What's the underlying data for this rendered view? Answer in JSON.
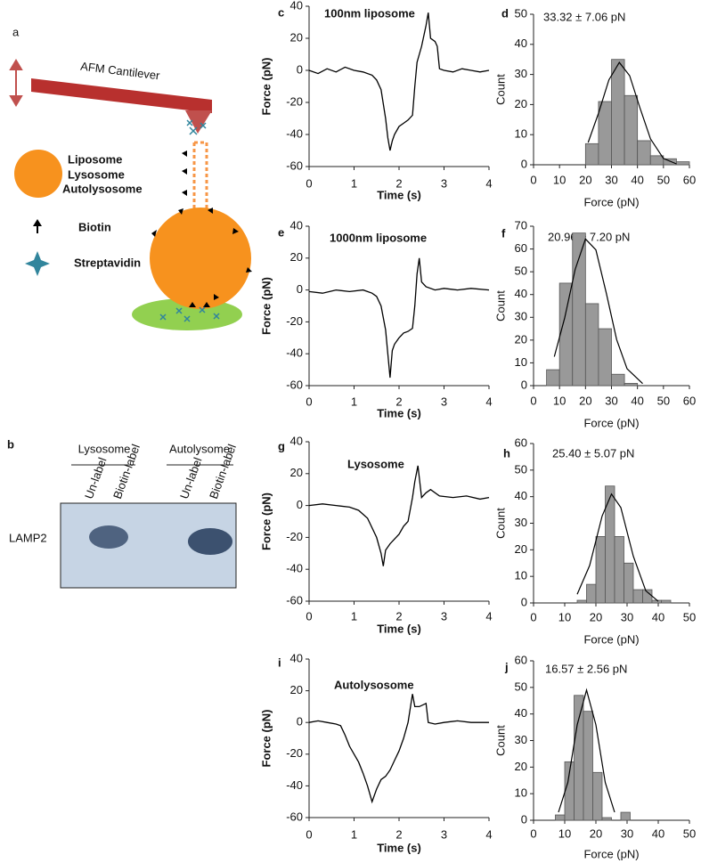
{
  "diagram": {
    "letter": "a",
    "cantilever": "AFM Cantilever",
    "legend": [
      "Liposome",
      "Lysosome",
      "Autolysosome"
    ],
    "biotin": "Biotin",
    "streptavidin": "Streptavidin"
  },
  "blot": {
    "letter": "b",
    "groups": [
      "Lysosome",
      "Autolysome"
    ],
    "lanes": [
      "Un-label",
      "Biotin-label",
      "Un-label",
      "Biotin-label"
    ],
    "row": "LAMP2"
  },
  "chart_data": [
    {
      "type": "line",
      "panel": "c",
      "title": "100nm liposome",
      "xlabel": "Time (s)",
      "ylabel": "Force (pN)",
      "color": "#000000",
      "xlim": [
        0,
        4
      ],
      "ylim": [
        -60,
        40
      ],
      "xticks": [
        0,
        1,
        2,
        3,
        4
      ],
      "yticks": [
        -60,
        -40,
        -20,
        0,
        20,
        40
      ],
      "x": [
        0,
        0.2,
        0.4,
        0.6,
        0.8,
        1.0,
        1.2,
        1.4,
        1.5,
        1.6,
        1.7,
        1.75,
        1.8,
        1.85,
        1.9,
        2.0,
        2.1,
        2.2,
        2.3,
        2.35,
        2.4,
        2.5,
        2.6,
        2.65,
        2.7,
        2.8,
        2.85,
        2.9,
        3.0,
        3.2,
        3.4,
        3.6,
        3.8,
        4.0
      ],
      "values": [
        0,
        -2,
        1,
        -1,
        2,
        0,
        -1,
        -3,
        -6,
        -12,
        -30,
        -42,
        -50,
        -44,
        -40,
        -35,
        -33,
        -31,
        -28,
        -10,
        5,
        15,
        28,
        36,
        20,
        18,
        15,
        1,
        0,
        -1,
        1,
        0,
        -1,
        0
      ]
    },
    {
      "type": "histogram",
      "panel": "d",
      "annotation": "33.32 ± 7.06 pN",
      "xlabel": "Force (pN)",
      "ylabel": "Count",
      "color": "#999999",
      "xlim": [
        0,
        60
      ],
      "ylim": [
        0,
        50
      ],
      "xticks": [
        0,
        10,
        20,
        30,
        40,
        50,
        60
      ],
      "yticks": [
        0,
        10,
        20,
        30,
        40,
        50
      ],
      "bins": [
        20,
        25,
        30,
        35,
        40,
        45,
        50,
        55,
        60
      ],
      "values": [
        7,
        21,
        35,
        23,
        8,
        3,
        2,
        1
      ],
      "fit": {
        "x": [
          21,
          25,
          29,
          33,
          37,
          41,
          45,
          50,
          55
        ],
        "values": [
          7.4,
          17.1,
          28.2,
          34,
          29.6,
          18.8,
          8.6,
          2.1,
          0.3
        ]
      }
    },
    {
      "type": "line",
      "panel": "e",
      "title": "1000nm liposome",
      "xlabel": "Time (s)",
      "ylabel": "Force (pN)",
      "color": "#000000",
      "xlim": [
        0,
        4
      ],
      "ylim": [
        -60,
        40
      ],
      "xticks": [
        0,
        1,
        2,
        3,
        4
      ],
      "yticks": [
        -60,
        -40,
        -20,
        0,
        20,
        40
      ],
      "x": [
        0,
        0.3,
        0.6,
        0.9,
        1.2,
        1.4,
        1.5,
        1.6,
        1.7,
        1.75,
        1.8,
        1.85,
        1.9,
        2.0,
        2.1,
        2.2,
        2.3,
        2.35,
        2.4,
        2.45,
        2.5,
        2.6,
        2.8,
        3.0,
        3.3,
        3.6,
        4.0
      ],
      "values": [
        -1,
        -2,
        0,
        -1,
        0,
        -2,
        -4,
        -10,
        -25,
        -40,
        -55,
        -38,
        -34,
        -30,
        -27,
        -26,
        -24,
        -10,
        10,
        20,
        5,
        2,
        0,
        1,
        0,
        1,
        0
      ]
    },
    {
      "type": "histogram",
      "panel": "f",
      "annotation": "20.96 ± 7.20 pN",
      "xlabel": "Force (pN)",
      "ylabel": "Count",
      "color": "#999999",
      "xlim": [
        0,
        60
      ],
      "ylim": [
        0,
        70
      ],
      "xticks": [
        0,
        10,
        20,
        30,
        40,
        50,
        60
      ],
      "yticks": [
        0,
        10,
        20,
        30,
        40,
        50,
        60,
        70
      ],
      "bins": [
        5,
        10,
        15,
        20,
        25,
        30,
        35,
        40
      ],
      "values": [
        7,
        45,
        67,
        36,
        25,
        5,
        1
      ],
      "fit": {
        "x": [
          8,
          12,
          16,
          20,
          24,
          28,
          32,
          36,
          42
        ],
        "values": [
          12.7,
          29.8,
          51,
          64.4,
          59.6,
          40.6,
          20.2,
          7.4,
          0.9
        ]
      }
    },
    {
      "type": "line",
      "panel": "g",
      "title": "Lysosome",
      "xlabel": "Time (s)",
      "ylabel": "Force (pN)",
      "color": "#000000",
      "xlim": [
        0,
        4
      ],
      "ylim": [
        -60,
        40
      ],
      "xticks": [
        0,
        1,
        2,
        3,
        4
      ],
      "yticks": [
        -60,
        -40,
        -20,
        0,
        20,
        40
      ],
      "x": [
        0,
        0.3,
        0.6,
        0.9,
        1.1,
        1.3,
        1.5,
        1.6,
        1.65,
        1.7,
        1.8,
        2.0,
        2.1,
        2.2,
        2.3,
        2.35,
        2.42,
        2.5,
        2.6,
        2.7,
        2.9,
        3.2,
        3.5,
        3.8,
        4.0
      ],
      "values": [
        0,
        1,
        0,
        -1,
        -3,
        -8,
        -20,
        -30,
        -38,
        -28,
        -24,
        -18,
        -13,
        -10,
        5,
        15,
        25,
        5,
        8,
        10,
        6,
        5,
        6,
        4,
        5
      ]
    },
    {
      "type": "histogram",
      "panel": "h",
      "annotation": "25.40 ± 5.07 pN",
      "xlabel": "Force (pN)",
      "ylabel": "Count",
      "color": "#999999",
      "xlim": [
        0,
        50
      ],
      "ylim": [
        0,
        60
      ],
      "xticks": [
        0,
        10,
        20,
        30,
        40,
        50
      ],
      "yticks": [
        0,
        10,
        20,
        30,
        40,
        50,
        60
      ],
      "bins": [
        14,
        17,
        20,
        23,
        26,
        29,
        32,
        35,
        38,
        41,
        44
      ],
      "values": [
        1,
        7,
        25,
        44,
        25,
        15,
        5,
        5,
        1,
        1
      ],
      "fit": {
        "x": [
          14,
          18,
          22,
          25,
          28,
          32,
          36,
          40
        ],
        "values": [
          3.3,
          14.1,
          32.7,
          41,
          35.9,
          17.6,
          4.6,
          0.6
        ]
      }
    },
    {
      "type": "line",
      "panel": "i",
      "title": "Autolysosome",
      "xlabel": "Time (s)",
      "ylabel": "Force (pN)",
      "color": "#000000",
      "xlim": [
        0,
        4
      ],
      "ylim": [
        -60,
        40
      ],
      "xticks": [
        0,
        1,
        2,
        3,
        4
      ],
      "yticks": [
        -60,
        -40,
        -20,
        0,
        20,
        40
      ],
      "x": [
        0,
        0.2,
        0.4,
        0.6,
        0.7,
        0.8,
        0.9,
        1.0,
        1.1,
        1.2,
        1.3,
        1.4,
        1.5,
        1.6,
        1.7,
        1.8,
        1.9,
        2.0,
        2.1,
        2.2,
        2.3,
        2.35,
        2.45,
        2.6,
        2.65,
        2.8,
        3.0,
        3.3,
        3.6,
        4.0
      ],
      "values": [
        0,
        1,
        0,
        -1,
        -2,
        -8,
        -15,
        -20,
        -25,
        -32,
        -40,
        -50,
        -42,
        -36,
        -34,
        -30,
        -24,
        -18,
        -10,
        0,
        18,
        10,
        10,
        12,
        0,
        -1,
        0,
        1,
        0,
        0
      ]
    },
    {
      "type": "histogram",
      "panel": "j",
      "annotation": "16.57 ± 2.56 pN",
      "xlabel": "Force (pN)",
      "ylabel": "Count",
      "color": "#999999",
      "xlim": [
        0,
        50
      ],
      "ylim": [
        0,
        60
      ],
      "xticks": [
        0,
        10,
        20,
        30,
        40,
        50
      ],
      "yticks": [
        0,
        10,
        20,
        30,
        40,
        50,
        60
      ],
      "bins": [
        7,
        10,
        13,
        16,
        19,
        22,
        25,
        28,
        31
      ],
      "values": [
        2,
        22,
        47,
        41,
        18,
        1,
        0,
        3
      ],
      "fit": {
        "x": [
          8,
          11,
          14,
          17,
          20,
          23,
          26
        ],
        "values": [
          3,
          14.2,
          35.9,
          49,
          35.9,
          14.2,
          3
        ]
      }
    }
  ]
}
